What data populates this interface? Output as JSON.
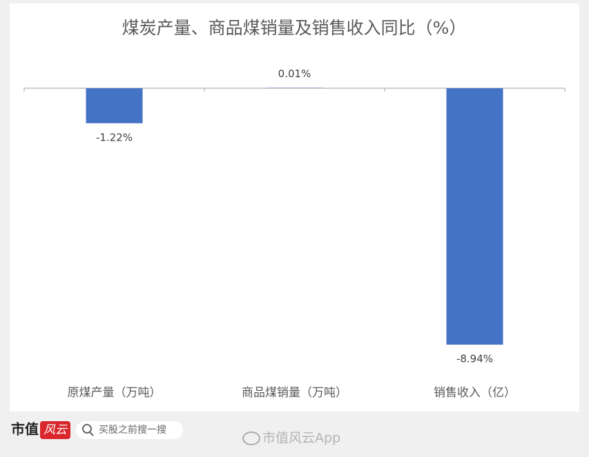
{
  "chart_data": {
    "type": "bar",
    "title": "煤炭产量、商品煤销量及销售收入同比（%）",
    "categories": [
      "原煤产量（万吨）",
      "商品煤销量（万吨）",
      "销售收入（亿）"
    ],
    "values": [
      -1.22,
      0.01,
      -8.94
    ],
    "value_labels": [
      "-1.22%",
      "0.01%",
      "-8.94%"
    ],
    "color": "#4472c4"
  },
  "footer": {
    "logo_left": "市值",
    "logo_right": "风云",
    "search_placeholder": "买股之前搜一搜",
    "watermark": "市值风云App"
  }
}
